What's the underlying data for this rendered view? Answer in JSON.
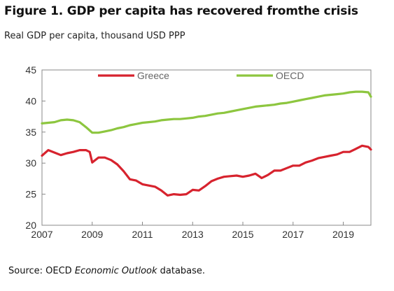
{
  "figure": {
    "title": "Figure 1. GDP per capita has recovered fromthe crisis",
    "subtitle": "Real GDP per capita, thousand USD PPP",
    "source_prefix": "Source: OECD ",
    "source_italic": "Economic Outlook",
    "source_suffix": " database."
  },
  "chart_data": {
    "type": "line",
    "title": "",
    "xlabel": "",
    "ylabel": "",
    "xlim": [
      2007,
      2020.1
    ],
    "ylim": [
      20,
      45
    ],
    "x_ticks": [
      "2007",
      "2009",
      "2011",
      "2013",
      "2015",
      "2017",
      "2019"
    ],
    "y_ticks": [
      "20",
      "25",
      "30",
      "35",
      "40",
      "45"
    ],
    "grid": false,
    "legend_placement": "top-center",
    "series": [
      {
        "name": "Greece",
        "color": "#d7232e",
        "points": [
          [
            2007.0,
            31.2
          ],
          [
            2007.25,
            32.1
          ],
          [
            2007.5,
            31.7
          ],
          [
            2007.75,
            31.3
          ],
          [
            2008.0,
            31.6
          ],
          [
            2008.25,
            31.8
          ],
          [
            2008.5,
            32.1
          ],
          [
            2008.75,
            32.1
          ],
          [
            2008.9,
            31.8
          ],
          [
            2009.0,
            30.1
          ],
          [
            2009.25,
            30.9
          ],
          [
            2009.5,
            30.9
          ],
          [
            2009.75,
            30.5
          ],
          [
            2010.0,
            29.8
          ],
          [
            2010.25,
            28.7
          ],
          [
            2010.5,
            27.4
          ],
          [
            2010.75,
            27.2
          ],
          [
            2011.0,
            26.6
          ],
          [
            2011.25,
            26.4
          ],
          [
            2011.5,
            26.2
          ],
          [
            2011.75,
            25.6
          ],
          [
            2012.0,
            24.8
          ],
          [
            2012.25,
            25.0
          ],
          [
            2012.5,
            24.9
          ],
          [
            2012.75,
            25.0
          ],
          [
            2013.0,
            25.7
          ],
          [
            2013.25,
            25.6
          ],
          [
            2013.5,
            26.3
          ],
          [
            2013.75,
            27.1
          ],
          [
            2014.0,
            27.5
          ],
          [
            2014.25,
            27.8
          ],
          [
            2014.5,
            27.9
          ],
          [
            2014.75,
            28.0
          ],
          [
            2015.0,
            27.8
          ],
          [
            2015.25,
            28.0
          ],
          [
            2015.5,
            28.3
          ],
          [
            2015.75,
            27.6
          ],
          [
            2016.0,
            28.1
          ],
          [
            2016.25,
            28.8
          ],
          [
            2016.5,
            28.8
          ],
          [
            2016.75,
            29.2
          ],
          [
            2017.0,
            29.6
          ],
          [
            2017.25,
            29.6
          ],
          [
            2017.5,
            30.1
          ],
          [
            2017.75,
            30.4
          ],
          [
            2018.0,
            30.8
          ],
          [
            2018.25,
            31.0
          ],
          [
            2018.5,
            31.2
          ],
          [
            2018.75,
            31.4
          ],
          [
            2019.0,
            31.8
          ],
          [
            2019.25,
            31.8
          ],
          [
            2019.5,
            32.3
          ],
          [
            2019.75,
            32.8
          ],
          [
            2020.0,
            32.6
          ],
          [
            2020.1,
            32.2
          ]
        ]
      },
      {
        "name": "OECD",
        "color": "#8dc63f",
        "points": [
          [
            2007.0,
            36.4
          ],
          [
            2007.25,
            36.5
          ],
          [
            2007.5,
            36.6
          ],
          [
            2007.75,
            36.9
          ],
          [
            2008.0,
            37.0
          ],
          [
            2008.25,
            36.9
          ],
          [
            2008.5,
            36.6
          ],
          [
            2008.75,
            35.8
          ],
          [
            2009.0,
            34.9
          ],
          [
            2009.25,
            34.9
          ],
          [
            2009.5,
            35.1
          ],
          [
            2009.75,
            35.3
          ],
          [
            2010.0,
            35.6
          ],
          [
            2010.25,
            35.8
          ],
          [
            2010.5,
            36.1
          ],
          [
            2010.75,
            36.3
          ],
          [
            2011.0,
            36.5
          ],
          [
            2011.25,
            36.6
          ],
          [
            2011.5,
            36.7
          ],
          [
            2011.75,
            36.9
          ],
          [
            2012.0,
            37.0
          ],
          [
            2012.25,
            37.1
          ],
          [
            2012.5,
            37.1
          ],
          [
            2012.75,
            37.2
          ],
          [
            2013.0,
            37.3
          ],
          [
            2013.25,
            37.5
          ],
          [
            2013.5,
            37.6
          ],
          [
            2013.75,
            37.8
          ],
          [
            2014.0,
            38.0
          ],
          [
            2014.25,
            38.1
          ],
          [
            2014.5,
            38.3
          ],
          [
            2014.75,
            38.5
          ],
          [
            2015.0,
            38.7
          ],
          [
            2015.25,
            38.9
          ],
          [
            2015.5,
            39.1
          ],
          [
            2015.75,
            39.2
          ],
          [
            2016.0,
            39.3
          ],
          [
            2016.25,
            39.4
          ],
          [
            2016.5,
            39.6
          ],
          [
            2016.75,
            39.7
          ],
          [
            2017.0,
            39.9
          ],
          [
            2017.25,
            40.1
          ],
          [
            2017.5,
            40.3
          ],
          [
            2017.75,
            40.5
          ],
          [
            2018.0,
            40.7
          ],
          [
            2018.25,
            40.9
          ],
          [
            2018.5,
            41.0
          ],
          [
            2018.75,
            41.1
          ],
          [
            2019.0,
            41.2
          ],
          [
            2019.25,
            41.4
          ],
          [
            2019.5,
            41.5
          ],
          [
            2019.75,
            41.5
          ],
          [
            2020.0,
            41.4
          ],
          [
            2020.1,
            40.7
          ]
        ]
      }
    ]
  }
}
